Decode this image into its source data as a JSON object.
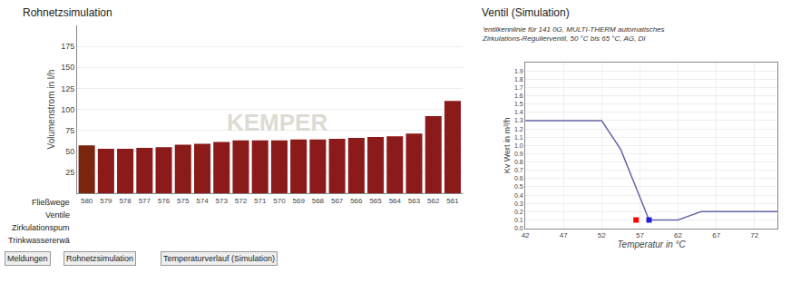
{
  "chart_data": [
    {
      "type": "bar",
      "title": "Rohnetzsimulation",
      "categories": [
        "580",
        "579",
        "578",
        "577",
        "576",
        "575",
        "574",
        "573",
        "572",
        "571",
        "570",
        "569",
        "568",
        "567",
        "566",
        "565",
        "564",
        "563",
        "562",
        "561"
      ],
      "values": [
        57,
        53,
        53,
        54,
        55,
        58,
        59,
        61,
        63,
        63,
        63,
        64,
        64,
        65,
        66,
        67,
        68,
        71,
        92,
        110
      ],
      "colors": [
        "#7A2510",
        "#8B1A1A",
        "#8B1A1A",
        "#8B1A1A",
        "#8B1A1A",
        "#8B1A1A",
        "#8B1A1A",
        "#8B1A1A",
        "#8B1A1A",
        "#8B1A1A",
        "#8B1A1A",
        "#8B1A1A",
        "#8B1A1A",
        "#8B1A1A",
        "#8B1A1A",
        "#8B1A1A",
        "#8B1A1A",
        "#8B1A1A",
        "#8B1A1A",
        "#8B1A1A"
      ],
      "ylabel": "Volumenstrom in l/h",
      "ylim": [
        0,
        200
      ],
      "yticks": [
        25,
        50,
        75,
        100,
        125,
        150,
        175
      ],
      "grid": true,
      "annotations": [
        "Fließwege",
        "Ventile",
        "Zirkulationspum",
        "Trinkwassererwä",
        "KEMPER",
        "Meldungen",
        "Rohnetzsimulation",
        "Temperaturverlauf (Simulation)"
      ]
    },
    {
      "type": "line",
      "title": "Ventil (Simulation)",
      "subtitle": "'entilkennlinie für 141 0G, MULTI-THERM automatisches Zirkulations-Regulierventil, 50 °C bis 65 °C, AG, DI",
      "xlabel": "Temperatur in °C",
      "ylabel": "Kv Wert in m³/h",
      "xlim": [
        42,
        75
      ],
      "ylim": [
        0.0,
        2.0
      ],
      "xticks": [
        42,
        47,
        52,
        57,
        62,
        67,
        72
      ],
      "yticks": [
        {
          "value": 0.0,
          "label": "0.0"
        },
        0.1,
        0.2,
        0.3,
        0.4,
        0.5,
        0.6,
        0.7,
        0.8,
        0.9,
        {
          "value": 1.0,
          "label": "1.0"
        },
        1.1,
        1.2,
        1.3,
        1.4,
        1.5,
        1.6,
        1.7,
        1.8,
        1.9
      ],
      "grid": true,
      "series": [
        {
          "type": "line",
          "color": "#6666aa",
          "x": [
            42,
            52,
            54.5,
            58.2,
            58.2,
            62,
            65,
            75
          ],
          "values": [
            1.3,
            1.3,
            0.95,
            0.1,
            0.1,
            0.1,
            0.2,
            0.2
          ]
        },
        {
          "type": "scatter",
          "marker": "square",
          "color": "red",
          "x": [
            56.5
          ],
          "values": [
            0.1
          ]
        },
        {
          "type": "scatter",
          "marker": "square",
          "color": "#2222cc",
          "x": [
            58.2
          ],
          "values": [
            0.1
          ]
        }
      ]
    }
  ]
}
